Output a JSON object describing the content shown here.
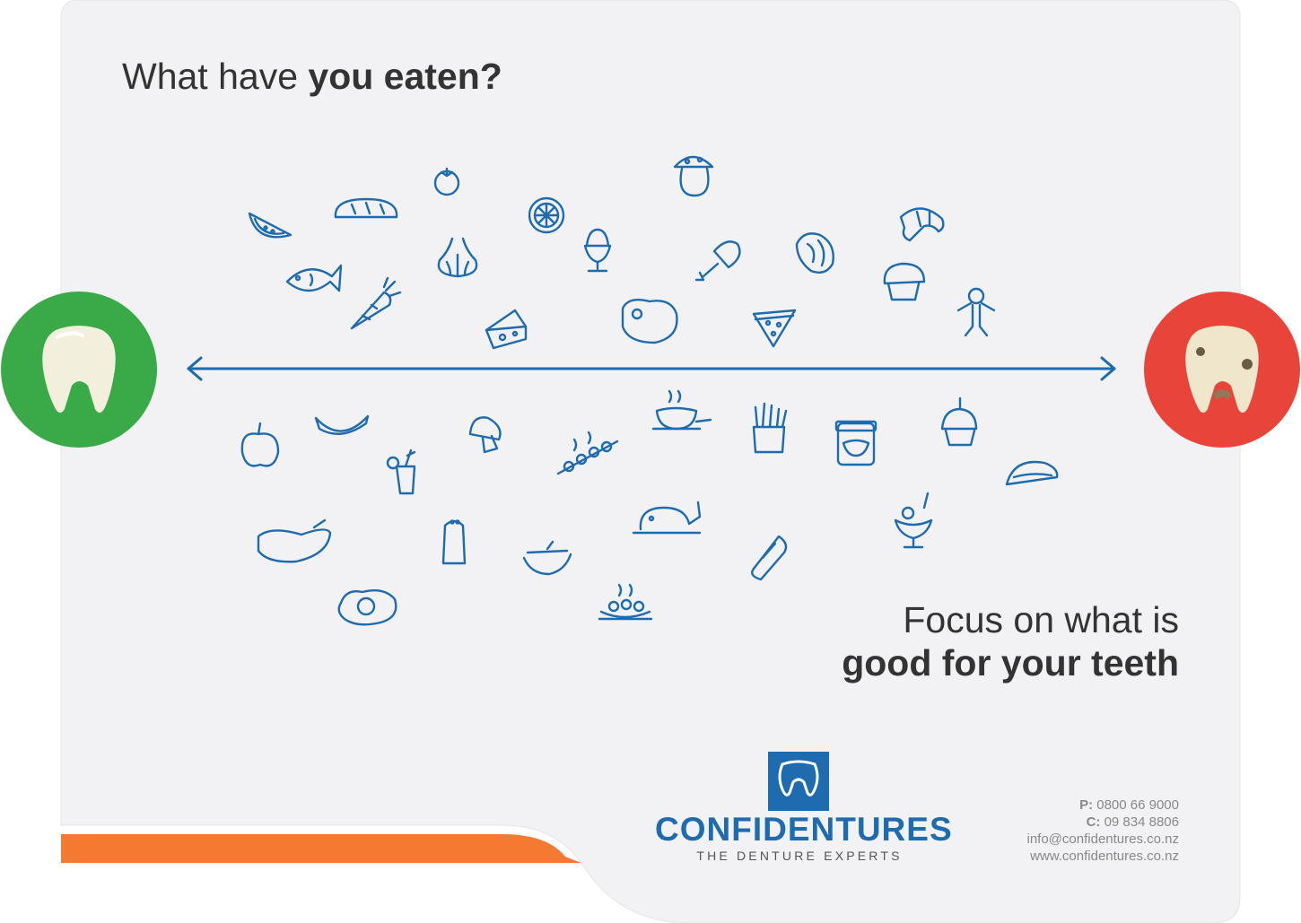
{
  "headline": {
    "regular": "What have ",
    "bold": "you eaten?"
  },
  "focus": {
    "line1": "Focus on what is",
    "line2": "good for your teeth"
  },
  "brand": {
    "name": "CONFIDENTURES",
    "tagline": "THE DENTURE EXPERTS"
  },
  "contact": {
    "phone_label": "P:",
    "phone": "0800 66 9000",
    "cell_label": "C:",
    "cell": "09 834 8806",
    "email": "info@confidentures.co.nz",
    "website": "www.confidentures.co.nz"
  },
  "colors": {
    "icon_blue": "#1e6bb0",
    "good_green": "#3aaa48",
    "bad_red": "#e8443a",
    "orange": "#f47a31",
    "panel": "#f2f2f4"
  },
  "icons_top": [
    "watermelon-icon",
    "bread-icon",
    "tomato-icon",
    "lemon-slice-icon",
    "mushroom-icon",
    "fish-icon",
    "garlic-icon",
    "egg-cup-icon",
    "chicken-leg-icon",
    "salmon-steak-icon",
    "croissant-icon",
    "carrot-icon",
    "cheese-icon",
    "steak-icon",
    "pizza-slice-icon",
    "muffin-icon",
    "gingerbread-man-icon"
  ],
  "icons_bottom": [
    "apple-icon",
    "banana-icon",
    "cocktail-icon",
    "button-mushroom-icon",
    "kebab-icon",
    "soup-icon",
    "fries-icon",
    "jam-jar-icon",
    "birthday-cupcake-icon",
    "taco-icon",
    "eggplant-icon",
    "salt-shaker-icon",
    "sausage-icon",
    "roast-chicken-icon",
    "hot-dog-icon",
    "ice-cream-sundae-icon",
    "fried-egg-icon",
    "salad-plate-icon"
  ]
}
